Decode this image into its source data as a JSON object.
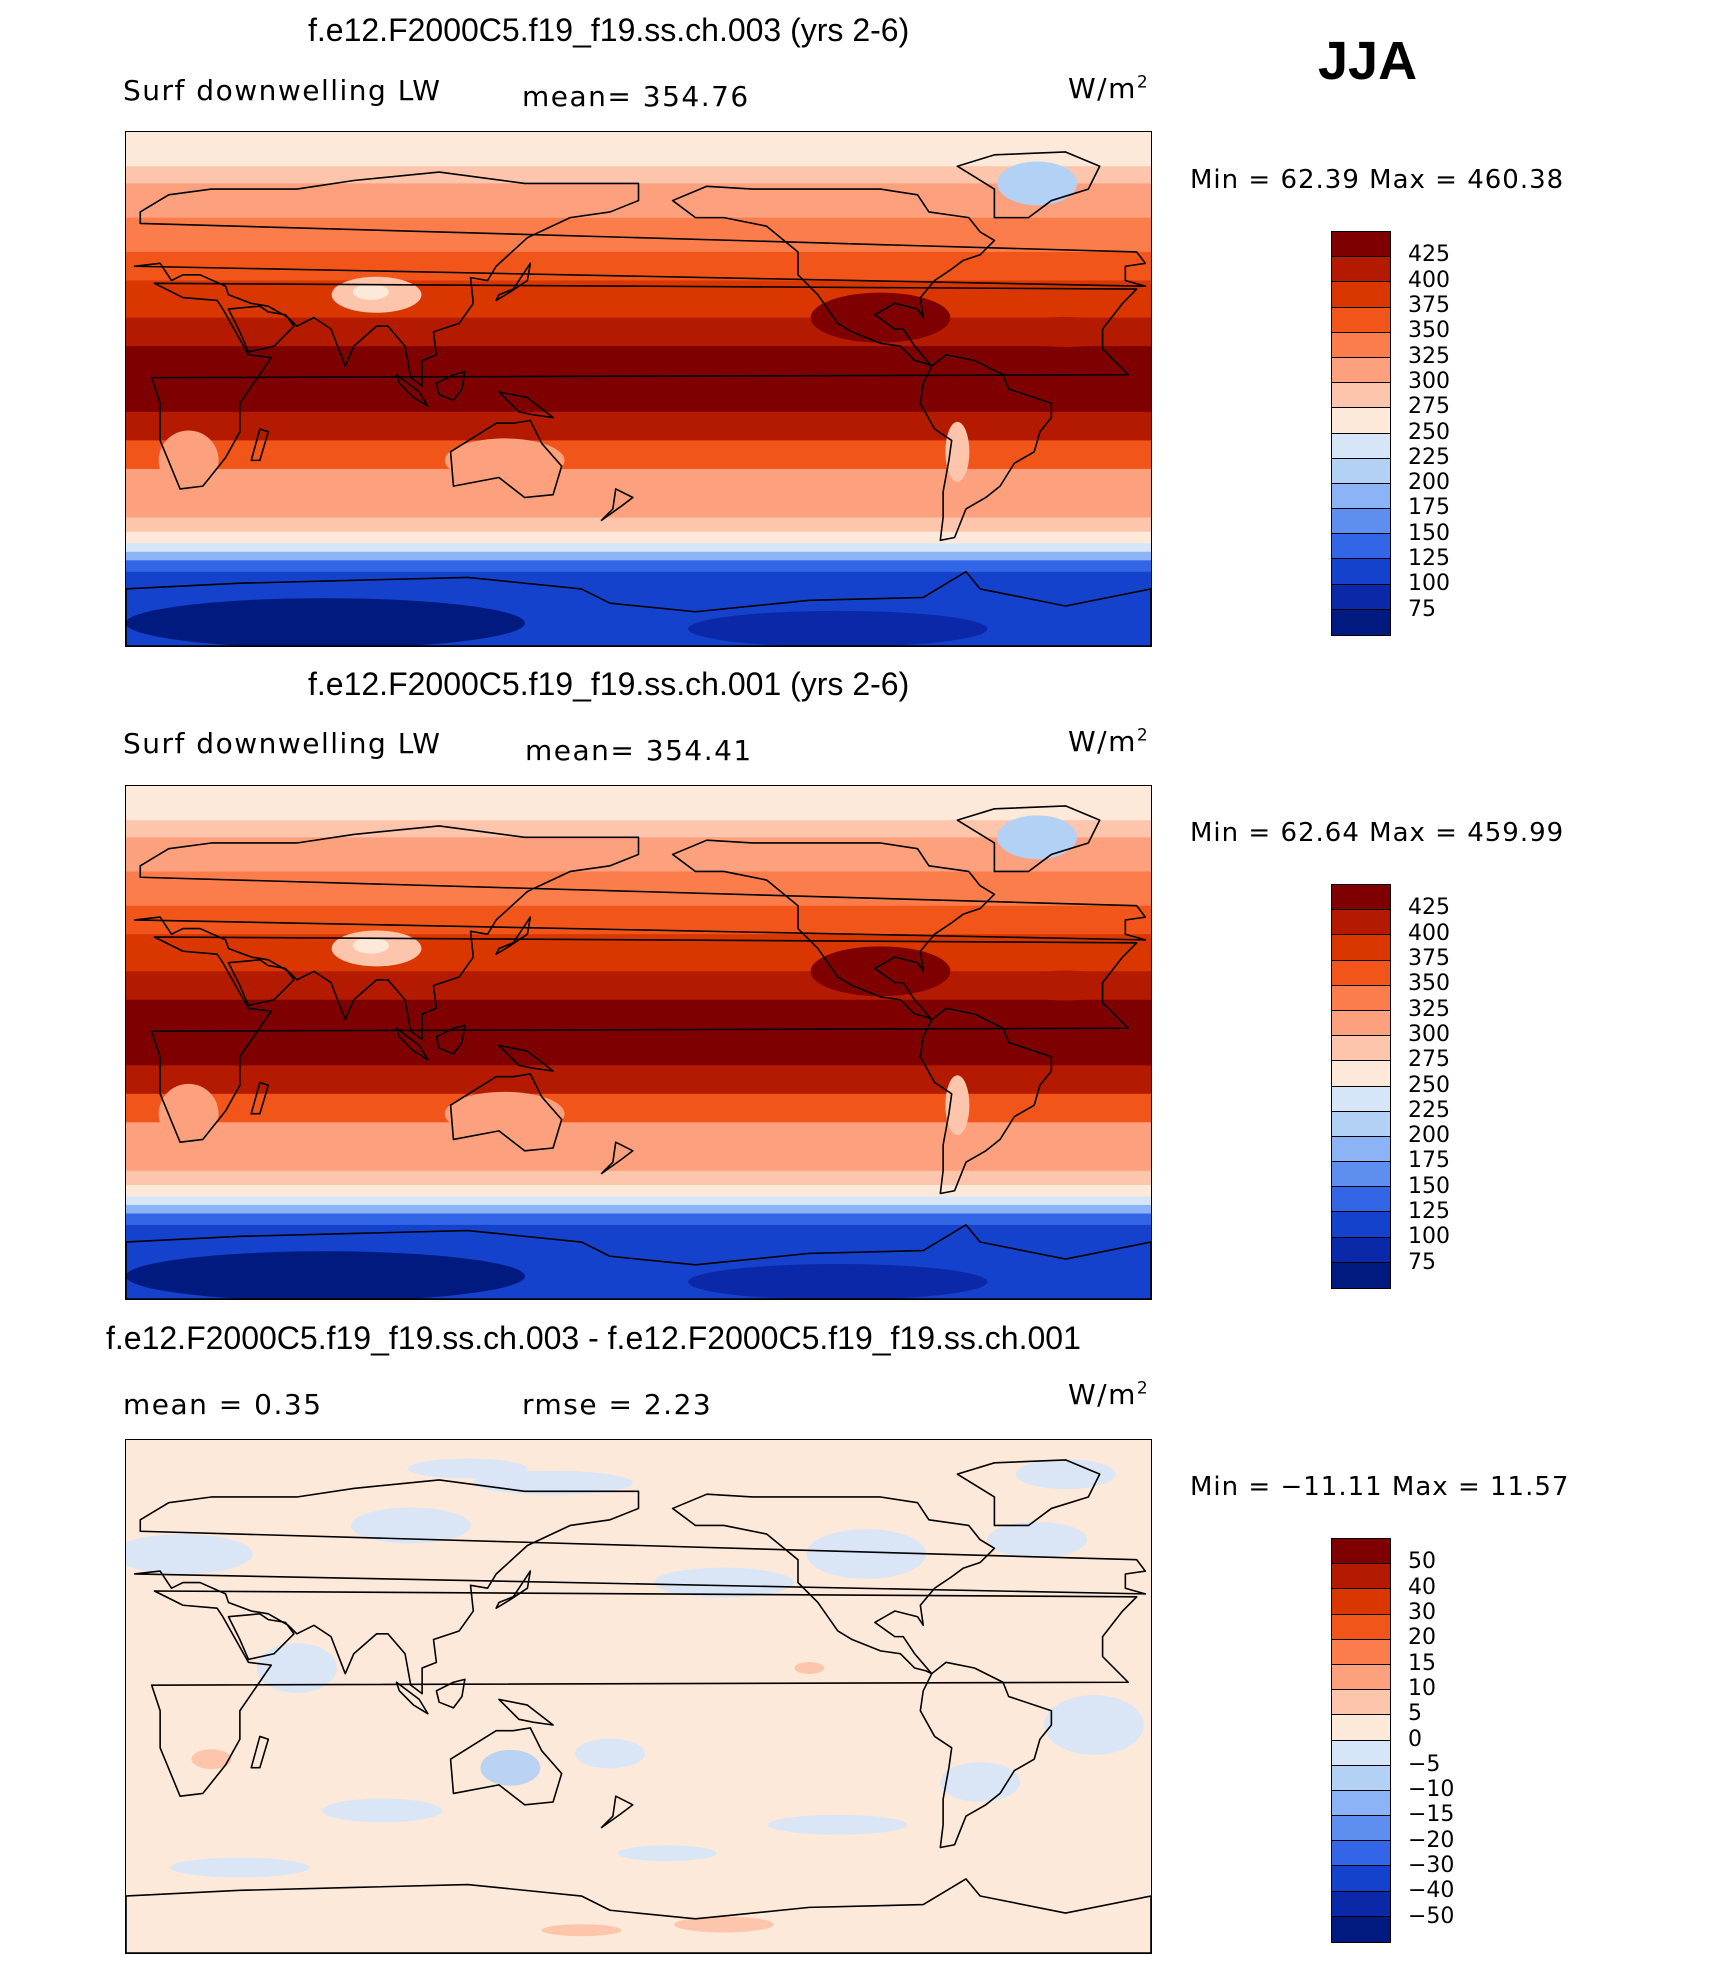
{
  "season": "JJA",
  "panels": [
    {
      "title": "f.e12.F2000C5.f19_f19.ss.ch.003 (yrs 2-6)",
      "left_label": "Surf  downwelling  LW",
      "center_label": "mean=  354.76",
      "units": "W/m",
      "units_exp": "2",
      "min_max": "Min  =    62.39  Max  =  460.38",
      "field": "absolute",
      "colorbar": {
        "labels": [
          "425",
          "400",
          "375",
          "350",
          "325",
          "300",
          "275",
          "250",
          "225",
          "200",
          "175",
          "150",
          "125",
          "100",
          "75"
        ],
        "colors": [
          "#7f0000",
          "#b31a00",
          "#d93600",
          "#f2551a",
          "#fc7d4c",
          "#fca07e",
          "#fdc6ac",
          "#fde9d9",
          "#d6e6f8",
          "#b3d0f5",
          "#8cb3f5",
          "#5e8ff0",
          "#3366e6",
          "#1442cc",
          "#0a28a8",
          "#001a80"
        ]
      }
    },
    {
      "title": "f.e12.F2000C5.f19_f19.ss.ch.001 (yrs 2-6)",
      "left_label": "Surf  downwelling  LW",
      "center_label": "mean=  354.41",
      "units": "W/m",
      "units_exp": "2",
      "min_max": "Min  =    62.64  Max  =  459.99",
      "field": "absolute",
      "colorbar": {
        "labels": [
          "425",
          "400",
          "375",
          "350",
          "325",
          "300",
          "275",
          "250",
          "225",
          "200",
          "175",
          "150",
          "125",
          "100",
          "75"
        ],
        "colors": [
          "#7f0000",
          "#b31a00",
          "#d93600",
          "#f2551a",
          "#fc7d4c",
          "#fca07e",
          "#fdc6ac",
          "#fde9d9",
          "#d6e6f8",
          "#b3d0f5",
          "#8cb3f5",
          "#5e8ff0",
          "#3366e6",
          "#1442cc",
          "#0a28a8",
          "#001a80"
        ]
      }
    },
    {
      "title": "f.e12.F2000C5.f19_f19.ss.ch.003 - f.e12.F2000C5.f19_f19.ss.ch.001",
      "left_label": "mean  =     0.35",
      "center_label": "rmse  =      2.23",
      "units": "W/m",
      "units_exp": "2",
      "min_max": "Min  =  −11.11  Max  =    11.57",
      "field": "difference",
      "colorbar": {
        "labels": [
          "50",
          "40",
          "30",
          "20",
          "15",
          "10",
          "5",
          "0",
          "−5",
          "−10",
          "−15",
          "−20",
          "−30",
          "−40",
          "−50"
        ],
        "colors": [
          "#7f0000",
          "#b31a00",
          "#d93600",
          "#f2551a",
          "#fc7d4c",
          "#fca07e",
          "#fdc6ac",
          "#fde9d9",
          "#d6e6f8",
          "#b3d0f5",
          "#8cb3f5",
          "#5e8ff0",
          "#3366e6",
          "#1442cc",
          "#0a28a8",
          "#001a80"
        ]
      }
    }
  ]
}
